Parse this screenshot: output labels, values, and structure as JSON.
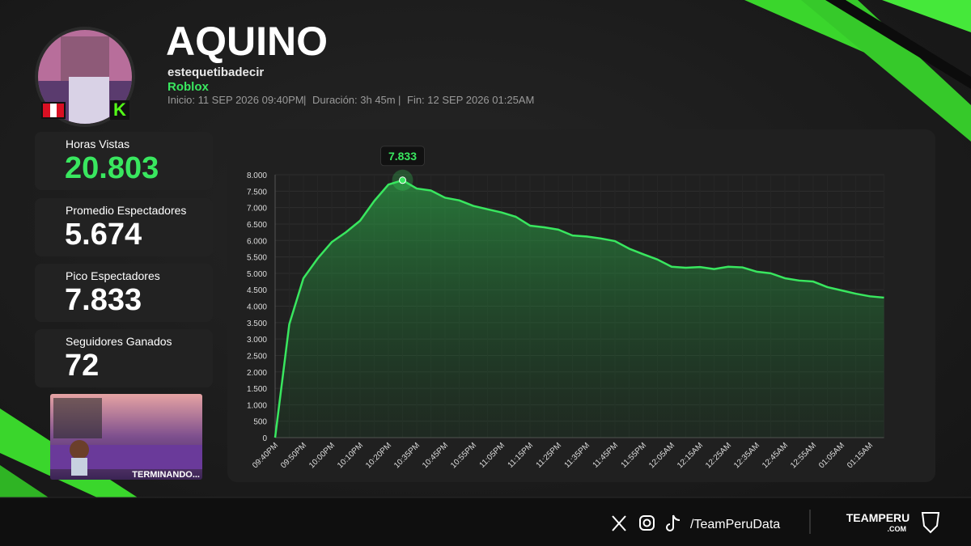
{
  "header": {
    "title": "AQUINO",
    "username": "estequetibadecir",
    "game": "Roblox",
    "start": "Inicio: 11 SEP 2026 09:40PM",
    "duration": "Duración: 3h 45m",
    "end": "Fin: 12 SEP 2026 01:25AM"
  },
  "stats": [
    {
      "label": "Horas Vistas",
      "value": "20.803"
    },
    {
      "label": "Promedio Espectadores",
      "value": "5.674"
    },
    {
      "label": "Pico Espectadores",
      "value": "7.833"
    },
    {
      "label": "Seguidores Ganados",
      "value": "72"
    }
  ],
  "thumbnail": {
    "caption": "TERMINANDO..."
  },
  "footer": {
    "handle": "/TeamPeruData",
    "brand": "TEAMPERU",
    "brand_suffix": ".COM"
  },
  "chart_data": {
    "type": "area",
    "color": "#39e75f",
    "grid": true,
    "categories": [
      "09:40PM",
      null,
      "09:50PM",
      null,
      "10:00PM",
      null,
      "10:10PM",
      null,
      "10:20PM",
      null,
      "10:35PM",
      null,
      "10:45PM",
      null,
      "10:55PM",
      null,
      "11:05PM",
      null,
      "11:15PM",
      null,
      "11:25PM",
      null,
      "11:35PM",
      null,
      "11:45PM",
      null,
      "11:55PM",
      null,
      "12:05AM",
      null,
      "12:15AM",
      null,
      "12:25AM",
      null,
      "12:35AM",
      null,
      "12:45AM",
      null,
      "12:55AM",
      null,
      "01:05AM",
      null,
      "01:15AM",
      null
    ],
    "values": [
      0,
      3450,
      4850,
      5450,
      5950,
      6250,
      6600,
      7200,
      7700,
      7833,
      7580,
      7520,
      7300,
      7220,
      7050,
      6950,
      6850,
      6720,
      6450,
      6400,
      6330,
      6150,
      6120,
      6060,
      5980,
      5750,
      5580,
      5420,
      5200,
      5170,
      5190,
      5130,
      5200,
      5180,
      5050,
      5000,
      4850,
      4780,
      4750,
      4580,
      4480,
      4380,
      4300,
      4260
    ],
    "value_labels": [
      null,
      null,
      null,
      null,
      null,
      null,
      null,
      null,
      null,
      "7.833",
      null,
      null,
      null,
      null,
      null,
      null,
      null,
      null,
      null,
      null,
      null,
      null,
      null,
      null,
      null,
      null,
      null,
      null,
      null,
      null,
      null,
      null,
      null,
      null,
      null,
      null,
      null,
      null,
      null,
      null,
      null,
      null,
      null,
      null
    ],
    "ylim": [
      0,
      8000
    ],
    "yticks": [
      0,
      500,
      {
        "value": 1000,
        "label": "1.000"
      },
      {
        "value": 1500,
        "label": "1.500"
      },
      {
        "value": 2000,
        "label": "2.000"
      },
      {
        "value": 2500,
        "label": "2.500"
      },
      {
        "value": 3000,
        "label": "3.000"
      },
      {
        "value": 3500,
        "label": "3.500"
      },
      {
        "value": 4000,
        "label": "4.000"
      },
      {
        "value": 4500,
        "label": "4.500"
      },
      {
        "value": 5000,
        "label": "5.000"
      },
      {
        "value": 5500,
        "label": "5.500"
      },
      {
        "value": 6000,
        "label": "6.000"
      },
      {
        "value": 6500,
        "label": "6.500"
      },
      {
        "value": 7000,
        "label": "7.000"
      },
      {
        "value": 7500,
        "label": "7.500"
      },
      {
        "value": 8000,
        "label": "8.000"
      }
    ]
  }
}
